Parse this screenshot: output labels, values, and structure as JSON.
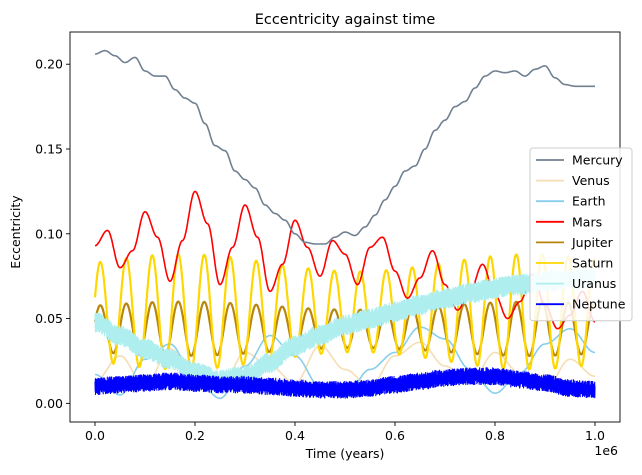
{
  "chart_data": {
    "type": "line",
    "title": "Eccentricity against time",
    "xlabel": "Time (years)",
    "ylabel": "Eccentricity",
    "x_offset_label": "1e6",
    "xlim": [
      -0.05,
      1.05
    ],
    "ylim": [
      -0.011,
      0.219
    ],
    "x_ticks": [
      0.0,
      0.2,
      0.4,
      0.6,
      0.8,
      1.0
    ],
    "x_tick_labels": [
      "0.0",
      "0.2",
      "0.4",
      "0.6",
      "0.8",
      "1.0"
    ],
    "y_ticks": [
      0.0,
      0.05,
      0.1,
      0.15,
      0.2
    ],
    "y_tick_labels": [
      "0.00",
      "0.05",
      "0.10",
      "0.15",
      "0.20"
    ],
    "grid": false,
    "legend_position": "right",
    "series": [
      {
        "name": "Mercury",
        "color": "#708090",
        "x": [
          0.0,
          0.02,
          0.04,
          0.06,
          0.08,
          0.1,
          0.12,
          0.14,
          0.16,
          0.18,
          0.2,
          0.22,
          0.24,
          0.26,
          0.28,
          0.3,
          0.32,
          0.34,
          0.36,
          0.38,
          0.4,
          0.42,
          0.44,
          0.46,
          0.48,
          0.5,
          0.52,
          0.54,
          0.56,
          0.58,
          0.6,
          0.62,
          0.64,
          0.66,
          0.68,
          0.7,
          0.72,
          0.74,
          0.76,
          0.78,
          0.8,
          0.82,
          0.84,
          0.86,
          0.88,
          0.9,
          0.92,
          0.94,
          0.96,
          0.98,
          1.0
        ],
        "y": [
          0.206,
          0.208,
          0.205,
          0.201,
          0.204,
          0.196,
          0.193,
          0.193,
          0.185,
          0.18,
          0.177,
          0.165,
          0.152,
          0.149,
          0.137,
          0.132,
          0.127,
          0.117,
          0.112,
          0.108,
          0.1,
          0.095,
          0.094,
          0.094,
          0.098,
          0.101,
          0.099,
          0.104,
          0.111,
          0.12,
          0.128,
          0.137,
          0.14,
          0.15,
          0.161,
          0.167,
          0.175,
          0.178,
          0.186,
          0.193,
          0.196,
          0.195,
          0.196,
          0.193,
          0.197,
          0.199,
          0.192,
          0.188,
          0.187,
          0.187,
          0.187
        ]
      },
      {
        "name": "Venus",
        "color": "#f5deb3",
        "x": [
          0.0,
          0.05,
          0.1,
          0.15,
          0.2,
          0.25,
          0.3,
          0.35,
          0.4,
          0.45,
          0.5,
          0.55,
          0.6,
          0.65,
          0.7,
          0.75,
          0.8,
          0.85,
          0.9,
          0.95,
          1.0
        ],
        "y": [
          0.013,
          0.028,
          0.01,
          0.032,
          0.018,
          0.008,
          0.03,
          0.022,
          0.012,
          0.034,
          0.02,
          0.01,
          0.028,
          0.036,
          0.022,
          0.012,
          0.03,
          0.018,
          0.008,
          0.026,
          0.016
        ]
      },
      {
        "name": "Earth",
        "color": "#87ceeb",
        "x": [
          0.0,
          0.05,
          0.1,
          0.15,
          0.2,
          0.25,
          0.3,
          0.35,
          0.4,
          0.45,
          0.5,
          0.55,
          0.6,
          0.65,
          0.7,
          0.75,
          0.8,
          0.85,
          0.9,
          0.95,
          1.0
        ],
        "y": [
          0.017,
          0.005,
          0.026,
          0.035,
          0.015,
          0.003,
          0.022,
          0.04,
          0.028,
          0.01,
          0.004,
          0.02,
          0.03,
          0.045,
          0.038,
          0.02,
          0.006,
          0.018,
          0.035,
          0.044,
          0.03
        ]
      },
      {
        "name": "Mars",
        "color": "#ff0000",
        "x": [
          0.0,
          0.025,
          0.05,
          0.075,
          0.1,
          0.125,
          0.15,
          0.175,
          0.2,
          0.225,
          0.25,
          0.275,
          0.3,
          0.325,
          0.35,
          0.375,
          0.4,
          0.425,
          0.45,
          0.475,
          0.5,
          0.525,
          0.55,
          0.575,
          0.6,
          0.625,
          0.65,
          0.675,
          0.7,
          0.725,
          0.75,
          0.775,
          0.8,
          0.825,
          0.85,
          0.875,
          0.9,
          0.925,
          0.95,
          0.975,
          1.0
        ],
        "y": [
          0.093,
          0.102,
          0.08,
          0.09,
          0.113,
          0.098,
          0.072,
          0.096,
          0.125,
          0.106,
          0.07,
          0.092,
          0.117,
          0.098,
          0.066,
          0.082,
          0.108,
          0.092,
          0.075,
          0.096,
          0.088,
          0.07,
          0.092,
          0.098,
          0.078,
          0.062,
          0.074,
          0.09,
          0.07,
          0.055,
          0.066,
          0.082,
          0.064,
          0.05,
          0.06,
          0.076,
          0.058,
          0.044,
          0.052,
          0.066,
          0.048
        ]
      },
      {
        "name": "Jupiter",
        "color": "#b8860b",
        "x_range": [
          0.0,
          1.0
        ],
        "oscillation": {
          "center": 0.044,
          "amplitude": 0.016,
          "period": 0.052
        }
      },
      {
        "name": "Saturn",
        "color": "#ffd700",
        "x_range": [
          0.0,
          1.0
        ],
        "oscillation": {
          "center": 0.054,
          "amplitude": 0.034,
          "period": 0.052
        }
      },
      {
        "name": "Uranus",
        "color": "#afeeee",
        "x": [
          0.0,
          0.05,
          0.1,
          0.15,
          0.2,
          0.25,
          0.3,
          0.35,
          0.4,
          0.45,
          0.5,
          0.55,
          0.6,
          0.65,
          0.7,
          0.75,
          0.8,
          0.85,
          0.9,
          0.95,
          1.0
        ],
        "y": [
          0.048,
          0.04,
          0.032,
          0.026,
          0.018,
          0.014,
          0.016,
          0.024,
          0.034,
          0.04,
          0.046,
          0.05,
          0.054,
          0.058,
          0.062,
          0.065,
          0.068,
          0.07,
          0.072,
          0.073,
          0.074
        ],
        "band_halfwidth": 0.006
      },
      {
        "name": "Neptune",
        "color": "#0000ff",
        "x": [
          0.0,
          0.05,
          0.1,
          0.15,
          0.2,
          0.25,
          0.3,
          0.35,
          0.4,
          0.45,
          0.5,
          0.55,
          0.6,
          0.65,
          0.7,
          0.75,
          0.8,
          0.85,
          0.9,
          0.95,
          1.0
        ],
        "y": [
          0.01,
          0.011,
          0.012,
          0.013,
          0.012,
          0.011,
          0.011,
          0.01,
          0.009,
          0.008,
          0.008,
          0.009,
          0.011,
          0.013,
          0.015,
          0.016,
          0.016,
          0.014,
          0.012,
          0.009,
          0.008
        ],
        "band_halfwidth": 0.005
      }
    ]
  }
}
